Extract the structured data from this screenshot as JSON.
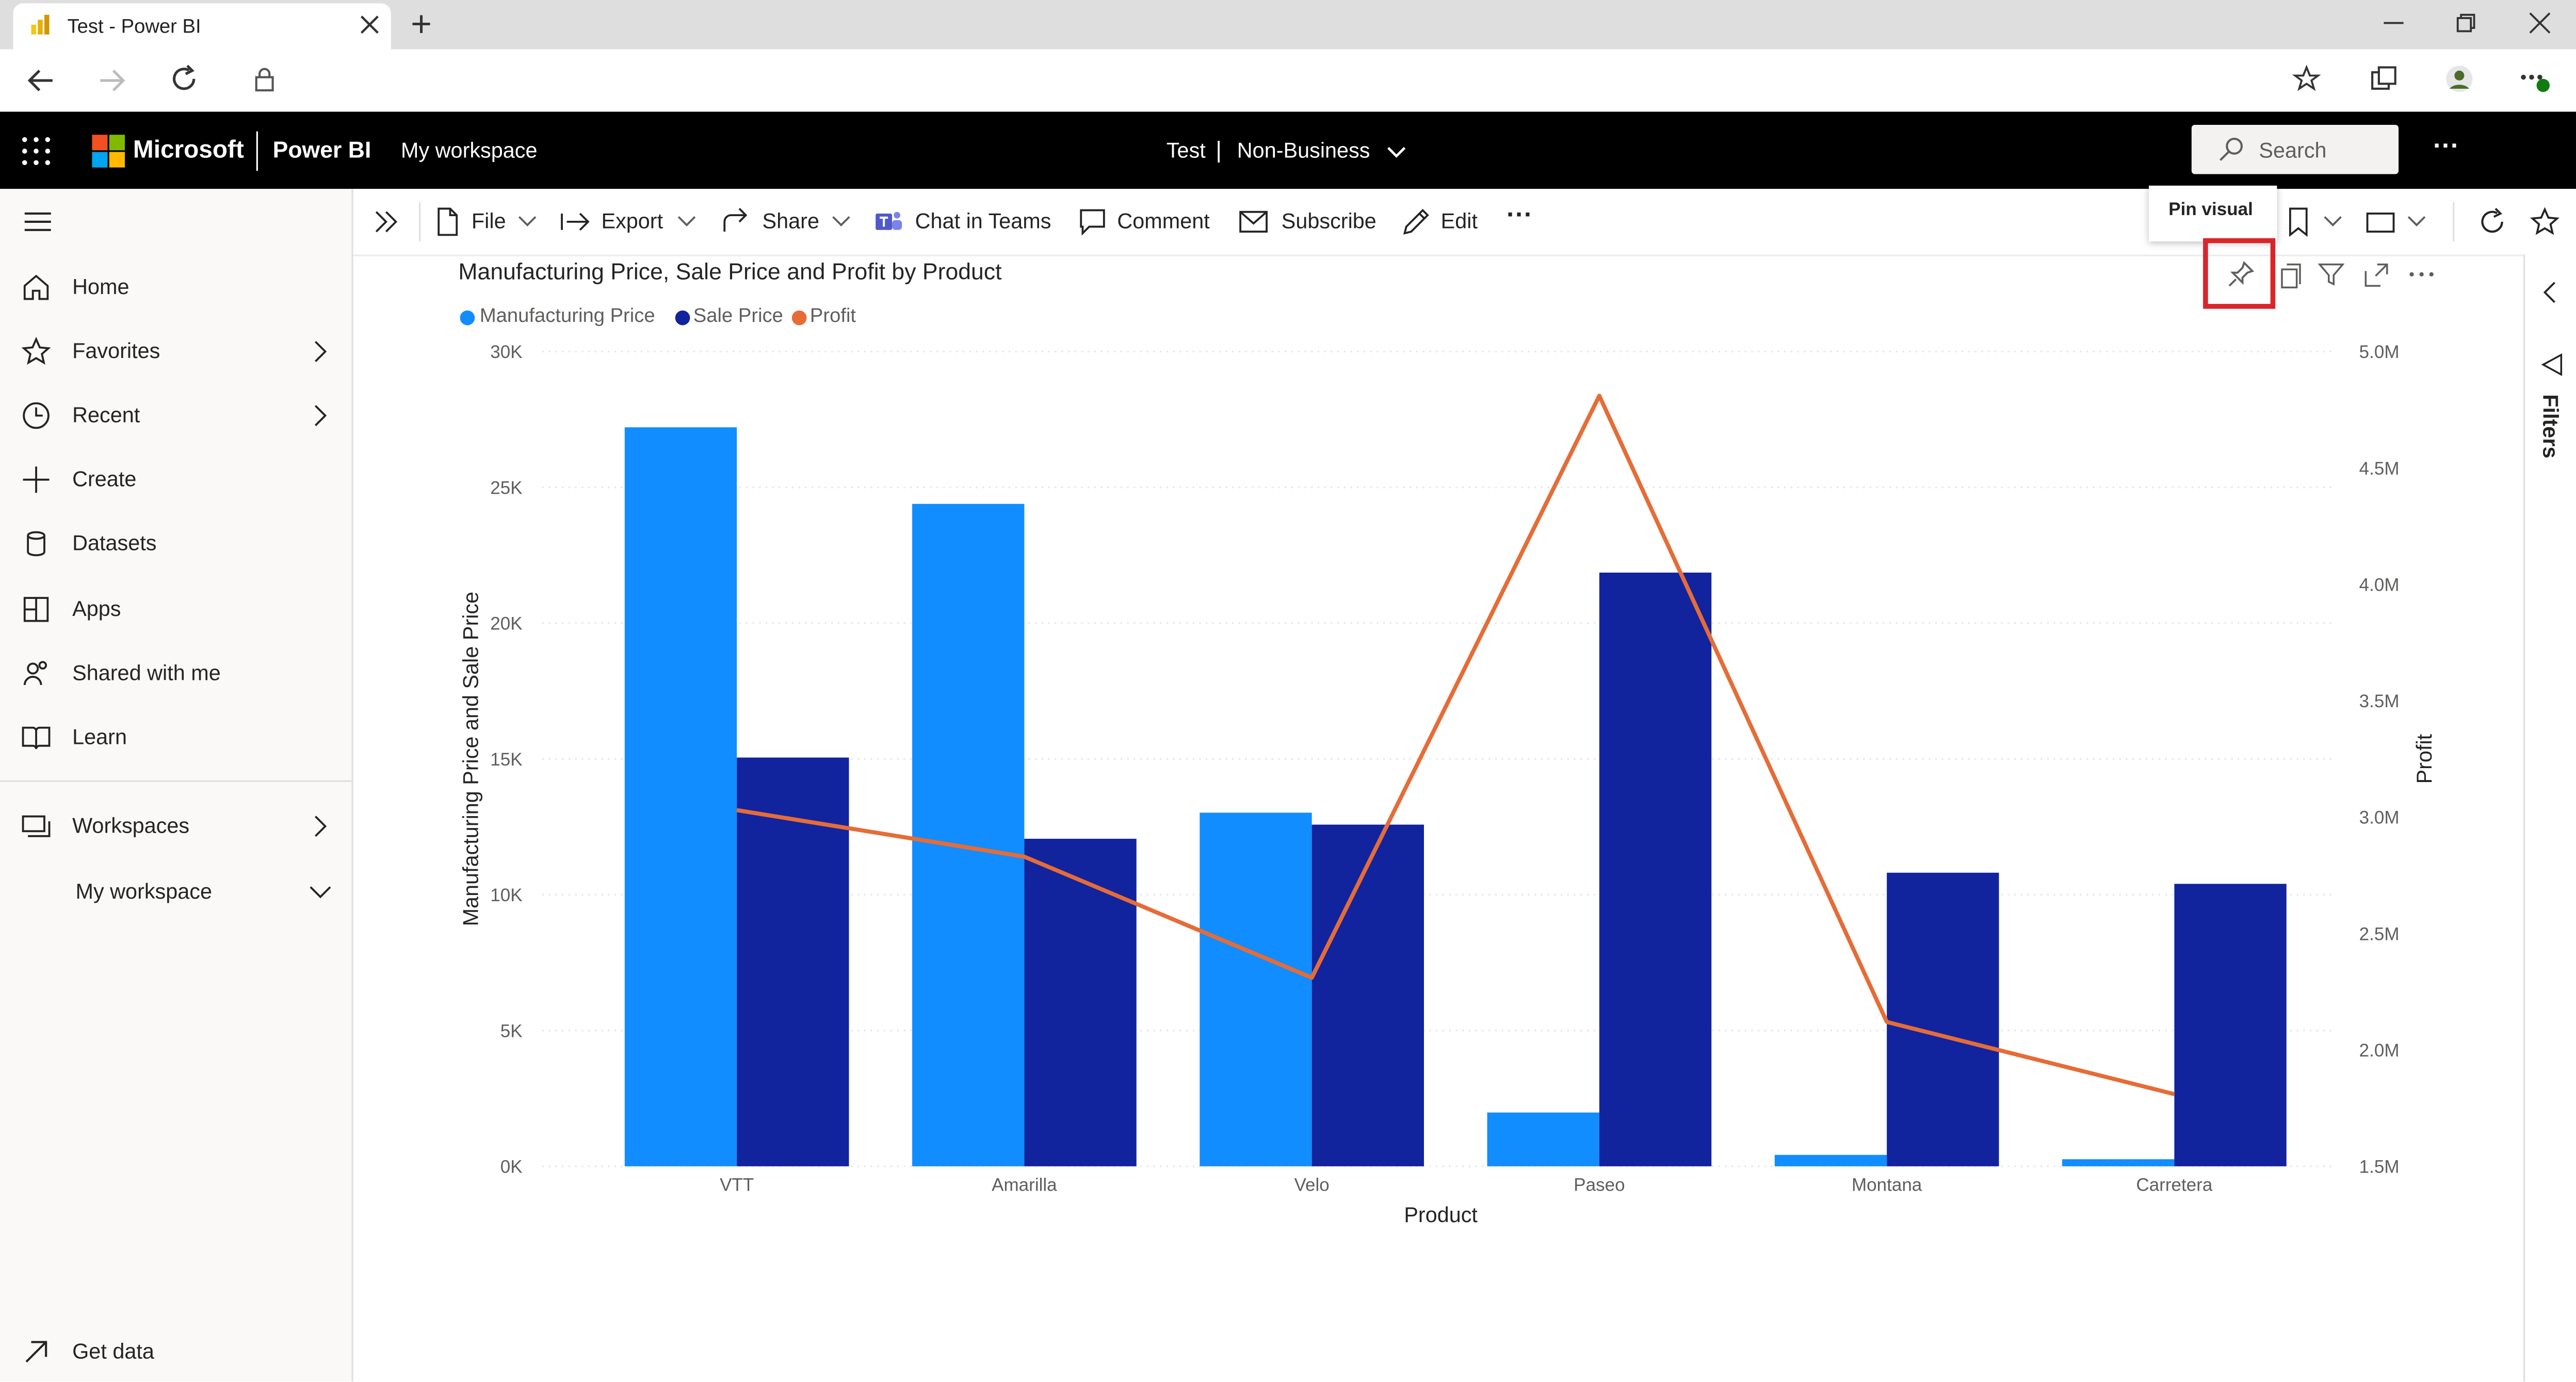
{
  "browser": {
    "tab_title": "Test - Power BI",
    "new_tab_glyph": "+",
    "colors": {
      "pbi_yellow": "#f2c811"
    }
  },
  "header": {
    "brand": "Microsoft",
    "product": "Power BI",
    "workspace_link": "My workspace",
    "report_name": "Test",
    "separator": "|",
    "sensitivity": "Non-Business",
    "search_placeholder": "Search",
    "more": "···"
  },
  "sidebar": {
    "items": [
      {
        "label": "Home",
        "icon": "home-icon"
      },
      {
        "label": "Favorites",
        "icon": "star-icon"
      },
      {
        "label": "Recent",
        "icon": "clock-icon"
      },
      {
        "label": "Create",
        "icon": "plus-icon"
      },
      {
        "label": "Datasets",
        "icon": "database-icon"
      },
      {
        "label": "Apps",
        "icon": "apps-icon"
      },
      {
        "label": "Shared with me",
        "icon": "shared-icon"
      },
      {
        "label": "Learn",
        "icon": "book-icon"
      },
      {
        "label": "Workspaces",
        "icon": "workspaces-icon"
      },
      {
        "label": "My workspace",
        "icon": ""
      }
    ],
    "get_data": "Get data"
  },
  "actionbar": {
    "file": "File",
    "export": "Export",
    "share": "Share",
    "chat_in_teams": "Chat in Teams",
    "comment": "Comment",
    "subscribe": "Subscribe",
    "edit": "Edit",
    "more": "···"
  },
  "tooltip": {
    "text": "Pin visual"
  },
  "filters": {
    "label": "Filters"
  },
  "chart_data": {
    "type": "bar",
    "title": "Manufacturing Price, Sale Price and Profit by Product",
    "xlabel": "Product",
    "ylabel": "Manufacturing Price and Sale Price",
    "y2label": "Profit",
    "categories": [
      "VTT",
      "Amarilla",
      "Velo",
      "Paseo",
      "Montana",
      "Carretera"
    ],
    "ylim": [
      0,
      30000
    ],
    "y2lim": [
      1500000,
      5000000
    ],
    "yticks": [
      "0K",
      "5K",
      "10K",
      "15K",
      "20K",
      "25K",
      "30K"
    ],
    "y2ticks": [
      "1.5M",
      "2.0M",
      "2.5M",
      "3.0M",
      "3.5M",
      "4.0M",
      "4.5M",
      "5.0M"
    ],
    "legend_position": "top-left",
    "grid": true,
    "series": [
      {
        "name": "Manufacturing Price",
        "kind": "bar",
        "axis": "left",
        "color": "#118dff",
        "values": [
          27210,
          24390,
          13020,
          1980,
          420,
          260
        ]
      },
      {
        "name": "Sale Price",
        "kind": "bar",
        "axis": "left",
        "color": "#12239e",
        "values": [
          15050,
          12060,
          12580,
          21860,
          10810,
          10400
        ]
      },
      {
        "name": "Profit",
        "kind": "line",
        "axis": "right",
        "color": "#e66c37",
        "values": [
          3030000,
          2830000,
          2310000,
          4810000,
          2120000,
          1810000
        ]
      }
    ]
  }
}
